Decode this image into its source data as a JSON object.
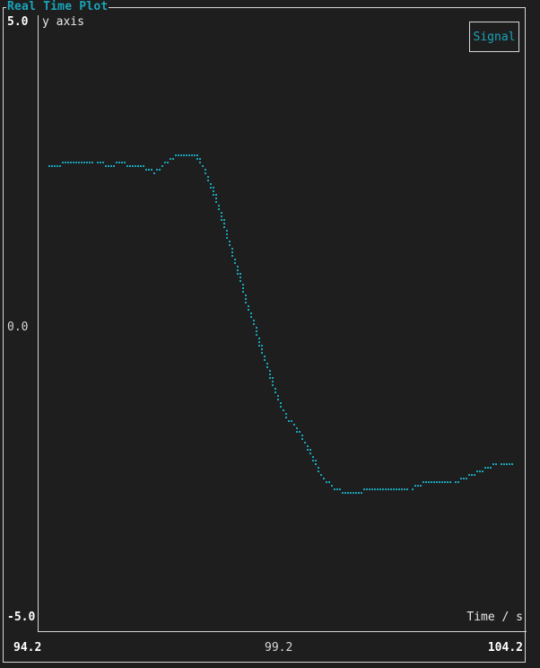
{
  "window": {
    "title": "Real Time Plot"
  },
  "colors": {
    "series": "#19a4b8",
    "background": "#1e1e1e",
    "border": "#d6d6d6"
  },
  "legend": {
    "label": "Signal"
  },
  "chart_data": {
    "type": "scatter",
    "title": "Real Time Plot",
    "xlabel": "Time / s",
    "ylabel": "y axis",
    "xlim": [
      94.2,
      104.2
    ],
    "ylim": [
      -5.0,
      5.0
    ],
    "x_ticks": [
      "94.2",
      "99.2",
      "104.2"
    ],
    "y_ticks": [
      "5.0",
      "0.0",
      "-5.0"
    ],
    "legend_position": "top-right",
    "grid": false,
    "series": [
      {
        "name": "Signal",
        "points": [
          [
            94.3,
            2.6
          ],
          [
            94.5,
            2.6
          ],
          [
            94.7,
            2.7
          ],
          [
            95.0,
            2.7
          ],
          [
            95.3,
            2.7
          ],
          [
            95.6,
            2.6
          ],
          [
            95.8,
            2.7
          ],
          [
            96.0,
            2.6
          ],
          [
            96.3,
            2.6
          ],
          [
            96.5,
            2.5
          ],
          [
            96.8,
            2.7
          ],
          [
            97.0,
            2.8
          ],
          [
            97.2,
            2.8
          ],
          [
            97.4,
            2.8
          ],
          [
            97.6,
            2.5
          ],
          [
            97.8,
            2.1
          ],
          [
            98.0,
            1.6
          ],
          [
            98.2,
            1.0
          ],
          [
            98.4,
            0.5
          ],
          [
            98.5,
            0.2
          ],
          [
            98.7,
            -0.3
          ],
          [
            98.9,
            -0.8
          ],
          [
            99.1,
            -1.3
          ],
          [
            99.3,
            -1.6
          ],
          [
            99.5,
            -1.8
          ],
          [
            99.7,
            -2.1
          ],
          [
            99.9,
            -2.4
          ],
          [
            100.0,
            -2.6
          ],
          [
            100.3,
            -2.8
          ],
          [
            100.6,
            -2.9
          ],
          [
            100.8,
            -2.9
          ],
          [
            101.0,
            -2.8
          ],
          [
            101.3,
            -2.8
          ],
          [
            101.6,
            -2.8
          ],
          [
            101.9,
            -2.8
          ],
          [
            102.2,
            -2.7
          ],
          [
            102.5,
            -2.7
          ],
          [
            102.8,
            -2.7
          ],
          [
            103.1,
            -2.6
          ],
          [
            103.4,
            -2.5
          ],
          [
            103.7,
            -2.4
          ],
          [
            104.0,
            -2.4
          ]
        ]
      }
    ]
  }
}
